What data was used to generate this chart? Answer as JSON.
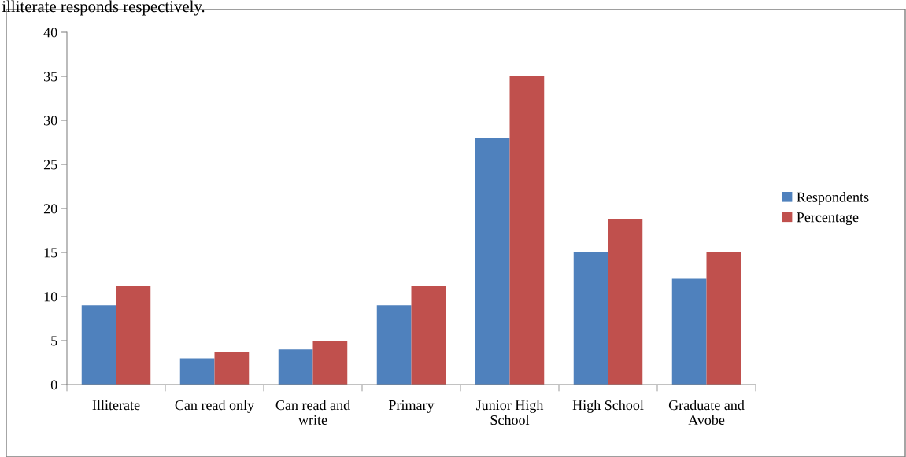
{
  "chart_data": {
    "type": "bar",
    "categories": [
      "Illiterate",
      "Can read only",
      "Can read and\nwrite",
      "Primary",
      "Junior High\nSchool",
      "High School",
      "Graduate and\nAvobe"
    ],
    "series": [
      {
        "name": "Respondents",
        "color": "#4f81bd",
        "values": [
          9,
          3,
          4,
          9,
          28,
          15,
          12
        ]
      },
      {
        "name": "Percentage",
        "color": "#c0504d",
        "values": [
          11.25,
          3.75,
          5,
          11.25,
          35,
          18.75,
          15
        ]
      }
    ],
    "ylim": [
      0,
      40
    ],
    "yticks": [
      0,
      5,
      10,
      15,
      20,
      25,
      30,
      35,
      40
    ],
    "grid": false,
    "legend": "right",
    "annotations": [
      "illiterate responds respectively."
    ]
  }
}
